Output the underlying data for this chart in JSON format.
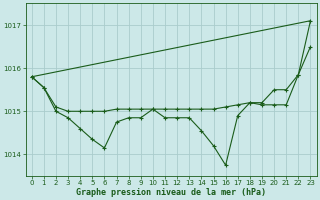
{
  "title": "Graphe pression niveau de la mer (hPa)",
  "bg_color": "#cce8e8",
  "grid_color": "#aacccc",
  "line_color": "#1a5c1a",
  "xlim": [
    -0.5,
    23.5
  ],
  "ylim": [
    1013.5,
    1017.5
  ],
  "yticks": [
    1014,
    1015,
    1016,
    1017
  ],
  "xticks": [
    0,
    1,
    2,
    3,
    4,
    5,
    6,
    7,
    8,
    9,
    10,
    11,
    12,
    13,
    14,
    15,
    16,
    17,
    18,
    19,
    20,
    21,
    22,
    23
  ],
  "series": [
    {
      "x": [
        0,
        23
      ],
      "y": [
        1015.8,
        1017.1
      ],
      "marker": false
    },
    {
      "x": [
        0,
        1,
        2,
        3,
        4,
        5,
        6,
        7,
        8,
        9,
        10,
        11,
        12,
        13,
        14,
        15,
        16,
        17,
        18,
        19,
        20,
        21,
        22,
        23
      ],
      "y": [
        1015.8,
        1015.55,
        1015.1,
        1015.0,
        1015.0,
        1015.0,
        1015.0,
        1015.05,
        1015.05,
        1015.05,
        1015.05,
        1015.05,
        1015.05,
        1015.05,
        1015.05,
        1015.05,
        1015.1,
        1015.15,
        1015.2,
        1015.2,
        1015.5,
        1015.5,
        1015.85,
        1016.5
      ],
      "marker": true
    },
    {
      "x": [
        0,
        1,
        2,
        3,
        4,
        5,
        6,
        7,
        8,
        9,
        10,
        11,
        12,
        13,
        14,
        15,
        16,
        17,
        18,
        19,
        20,
        21,
        22,
        23
      ],
      "y": [
        1015.8,
        1015.55,
        1015.0,
        1014.85,
        1014.6,
        1014.35,
        1014.15,
        1014.75,
        1014.85,
        1014.85,
        1015.05,
        1014.85,
        1014.85,
        1014.85,
        1014.55,
        1014.2,
        1013.75,
        1014.9,
        1015.2,
        1015.15,
        1015.15,
        1015.15,
        1015.85,
        1017.1
      ],
      "marker": true
    }
  ]
}
